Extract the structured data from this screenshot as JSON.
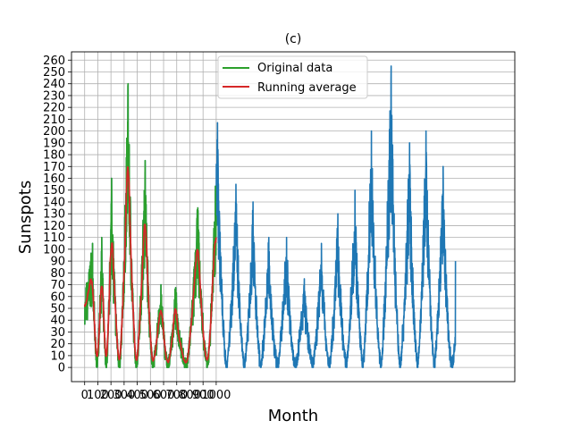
{
  "chart_data": {
    "type": "line",
    "title": "(c)",
    "xlabel": "Month",
    "ylabel": "Sunspots",
    "xlim": [
      -100,
      3270
    ],
    "ylim": [
      -12,
      267
    ],
    "xticks": [
      0,
      100,
      200,
      300,
      400,
      500,
      600,
      700,
      800,
      900,
      1000
    ],
    "yticks": [
      0,
      10,
      20,
      30,
      40,
      50,
      60,
      70,
      80,
      90,
      100,
      110,
      120,
      130,
      140,
      150,
      160,
      170,
      180,
      190,
      200,
      210,
      220,
      230,
      240,
      250,
      260
    ],
    "grid": true,
    "legend_location": "top-center",
    "cycle_peaks": {
      "full_data": [
        {
          "x": 60,
          "y": 105
        },
        {
          "x": 130,
          "y": 110
        },
        {
          "x": 205,
          "y": 160
        },
        {
          "x": 330,
          "y": 240
        },
        {
          "x": 460,
          "y": 175
        },
        {
          "x": 580,
          "y": 70
        },
        {
          "x": 690,
          "y": 65
        },
        {
          "x": 860,
          "y": 135
        },
        {
          "x": 1010,
          "y": 207
        },
        {
          "x": 1150,
          "y": 155
        },
        {
          "x": 1280,
          "y": 140
        },
        {
          "x": 1400,
          "y": 110
        },
        {
          "x": 1535,
          "y": 110
        },
        {
          "x": 1670,
          "y": 75
        },
        {
          "x": 1800,
          "y": 105
        },
        {
          "x": 1925,
          "y": 130
        },
        {
          "x": 2055,
          "y": 150
        },
        {
          "x": 2180,
          "y": 200
        },
        {
          "x": 2330,
          "y": 255
        },
        {
          "x": 2470,
          "y": 190
        },
        {
          "x": 2595,
          "y": 200
        },
        {
          "x": 2725,
          "y": 170
        },
        {
          "x": 2860,
          "y": 90
        }
      ],
      "running_average": [
        {
          "x": 60,
          "y": 85
        },
        {
          "x": 130,
          "y": 78
        },
        {
          "x": 205,
          "y": 130
        },
        {
          "x": 330,
          "y": 165
        },
        {
          "x": 460,
          "y": 140
        },
        {
          "x": 580,
          "y": 45
        },
        {
          "x": 690,
          "y": 50
        },
        {
          "x": 860,
          "y": 70
        }
      ]
    },
    "series": [
      {
        "name": "Original data",
        "color": "#2ca02c"
      },
      {
        "name": "Running average",
        "color": "#d62728"
      },
      {
        "color": "#1f77b4"
      }
    ]
  }
}
